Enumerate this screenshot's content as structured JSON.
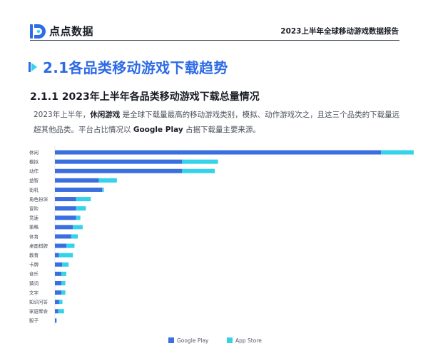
{
  "header": {
    "logo_text": "点点数据",
    "report_title": "2023上半年全球移动游戏数据报告"
  },
  "section": {
    "title": "2.1各品类移动游戏下载趋势"
  },
  "subsection": {
    "title": "2.1.1  2023年上半年各品类移动游戏下载总量情况"
  },
  "paragraph": {
    "part1": "2023年上半年，",
    "highlight1": "休闲游戏",
    "part2": " 是全球下载量最高的移动游戏类别，模拟、动作游戏次之，且这三个品类的下载量远超其他品类。平台占比情况以 ",
    "highlight2": "Google Play",
    "part3": " 占据下载量主要来源。"
  },
  "colors": {
    "google_play": "#3b6fe0",
    "app_store": "#34d3ea",
    "accent": "#2e6be6"
  },
  "chart_data": {
    "type": "bar",
    "orientation": "horizontal",
    "stacked": true,
    "categories": [
      "休闲",
      "模拟",
      "动作",
      "益智",
      "街机",
      "角色扮演",
      "冒险",
      "竞速",
      "策略",
      "体育",
      "桌面棋牌",
      "教育",
      "卡牌",
      "音乐",
      "猜词",
      "文字",
      "知识问答",
      "家庭聚会",
      "骰子"
    ],
    "series": [
      {
        "name": "Google Play",
        "values": [
          100,
          39,
          39,
          13.5,
          14.5,
          6.5,
          6.5,
          6.5,
          5.5,
          5,
          3.5,
          1.2,
          2.2,
          2,
          2,
          2,
          1.3,
          1,
          0.5
        ]
      },
      {
        "name": "App Store",
        "values": [
          10,
          11,
          10,
          5.5,
          0.5,
          4.5,
          3,
          1.3,
          3,
          2,
          2.5,
          4.3,
          2,
          1.5,
          1.2,
          1.2,
          1,
          1.8,
          0
        ]
      }
    ],
    "legend": [
      "Google Play",
      "App Store"
    ],
    "legend_position": "bottom",
    "xlim": [
      0,
      110
    ],
    "grid": false
  }
}
